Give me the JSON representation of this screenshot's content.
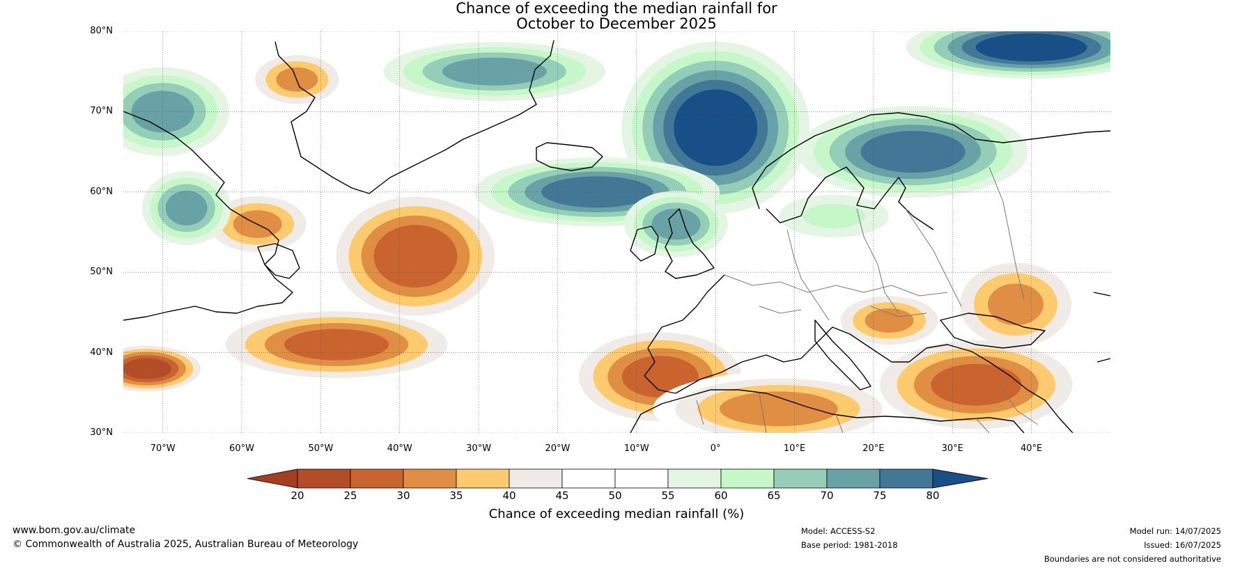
{
  "map": {
    "title_line1": "Chance of exceeding the median rainfall for",
    "title_line2": "October to December 2025",
    "lat_labels": [
      "80°N",
      "70°N",
      "60°N",
      "50°N",
      "40°N",
      "30°N"
    ],
    "lat_values": [
      80,
      70,
      60,
      50,
      40,
      30
    ],
    "lon_labels": [
      "70°W",
      "60°W",
      "50°W",
      "40°W",
      "30°W",
      "20°W",
      "10°W",
      "0°",
      "10°E",
      "20°E",
      "30°E",
      "40°E"
    ],
    "lon_values": [
      -70,
      -60,
      -50,
      -40,
      -30,
      -20,
      -10,
      0,
      10,
      20,
      30,
      40
    ],
    "extent": {
      "lon_min": -75,
      "lon_max": 50,
      "lat_min": 30,
      "lat_max": 80
    }
  },
  "legend": {
    "label": "Chance of exceeding median rainfall (%)",
    "ticks": [
      "20",
      "25",
      "30",
      "35",
      "40",
      "45",
      "50",
      "55",
      "60",
      "65",
      "70",
      "75",
      "80"
    ],
    "colors": [
      "#a33f1e",
      "#b34d27",
      "#c9642f",
      "#e18e45",
      "#fdcb6e",
      "#f0ebe6",
      "#ffffff",
      "#ffffff",
      "#e5f5e3",
      "#c6f7c9",
      "#94ceb8",
      "#69a2a6",
      "#427896",
      "#174f86"
    ]
  },
  "regions": [
    {
      "name": "greenland-dry",
      "lon": -53,
      "lat": 74,
      "value": 33
    },
    {
      "name": "north-atlantic-dry",
      "lon": -38,
      "lat": 52,
      "value": 25
    },
    {
      "name": "labrador-sea-dry",
      "lon": -58,
      "lat": 56,
      "value": 33
    },
    {
      "name": "mid-atlantic-dry",
      "lon": -48,
      "lat": 41,
      "value": 27
    },
    {
      "name": "southwest-atlantic-dry",
      "lon": -72,
      "lat": 38,
      "value": 24
    },
    {
      "name": "iberia-north-africa-dry",
      "lon": -7,
      "lat": 37,
      "value": 28
    },
    {
      "name": "north-africa-dry",
      "lon": 8,
      "lat": 33,
      "value": 30
    },
    {
      "name": "mediterranean-east-dry",
      "lon": 33,
      "lat": 36,
      "value": 28
    },
    {
      "name": "black-sea-dry",
      "lon": 38,
      "lat": 46,
      "value": 34
    },
    {
      "name": "balkans-dry",
      "lon": 22,
      "lat": 44,
      "value": 33
    },
    {
      "name": "norwegian-sea-wet",
      "lon": 0,
      "lat": 68,
      "value": 80
    },
    {
      "name": "iceland-south-wet",
      "lon": -15,
      "lat": 60,
      "value": 78
    },
    {
      "name": "british-isles-wet",
      "lon": -5,
      "lat": 56,
      "value": 70
    },
    {
      "name": "scandinavia-wet",
      "lon": 25,
      "lat": 65,
      "value": 75
    },
    {
      "name": "svalbard-wet",
      "lon": 40,
      "lat": 78,
      "value": 80
    },
    {
      "name": "denmark-strait-wet",
      "lon": -28,
      "lat": 75,
      "value": 74
    },
    {
      "name": "canada-arctic-wet",
      "lon": -70,
      "lat": 70,
      "value": 72
    },
    {
      "name": "labrador-wet",
      "lon": -67,
      "lat": 58,
      "value": 72
    },
    {
      "name": "baltic-wet",
      "lon": 15,
      "lat": 57,
      "value": 62
    },
    {
      "name": "central-europe-neutral",
      "lon": 12,
      "lat": 51,
      "value": 50
    },
    {
      "name": "atlantic-central-neutral",
      "lon": -22,
      "lat": 47,
      "value": 50
    },
    {
      "name": "greenland-ice-neutral",
      "lon": -40,
      "lat": 70,
      "value": 50
    }
  ],
  "footer": {
    "website": "www.bom.gov.au/climate",
    "copyright": "© Commonwealth of Australia 2025, Australian Bureau of Meteorology",
    "model": "Model: ACCESS-S2",
    "base_period": "Base period: 1981-2018",
    "model_run": "Model run: 14/07/2025",
    "issued": "Issued: 16/07/2025",
    "disclaimer": "Boundaries are not considered authoritative"
  }
}
